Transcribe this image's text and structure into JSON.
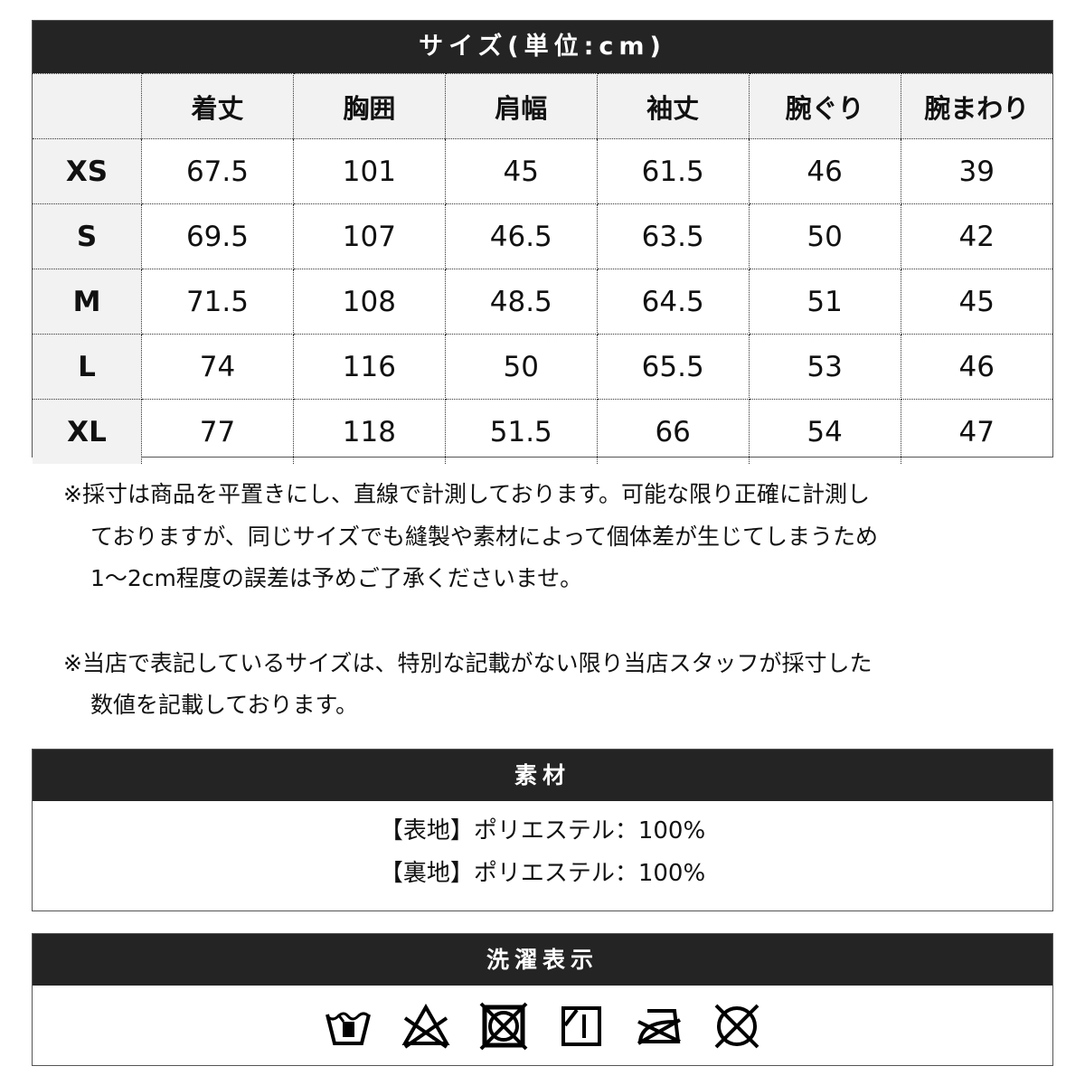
{
  "size_table": {
    "title": "サイズ(単位:cm)",
    "columns": [
      "",
      "着丈",
      "胸囲",
      "肩幅",
      "袖丈",
      "腕ぐり",
      "腕まわり"
    ],
    "rows": [
      {
        "size": "XS",
        "values": [
          "67.5",
          "101",
          "45",
          "61.5",
          "46",
          "39"
        ]
      },
      {
        "size": "S",
        "values": [
          "69.5",
          "107",
          "46.5",
          "63.5",
          "50",
          "42"
        ]
      },
      {
        "size": "M",
        "values": [
          "71.5",
          "108",
          "48.5",
          "64.5",
          "51",
          "45"
        ]
      },
      {
        "size": "L",
        "values": [
          "74",
          "116",
          "50",
          "65.5",
          "53",
          "46"
        ]
      },
      {
        "size": "XL",
        "values": [
          "77",
          "118",
          "51.5",
          "66",
          "54",
          "47"
        ]
      }
    ]
  },
  "notes": {
    "note1": [
      "※採寸は商品を平置きにし、直線で計測しております。可能な限り正確に計測し",
      "ておりますが、同じサイズでも縫製や素材によって個体差が生じてしまうため",
      "1～2cm程度の誤差は予めご了承くださいませ。"
    ],
    "note2": [
      "※当店で表記しているサイズは、特別な記載がない限り当店スタッフが採寸した",
      "数値を記載しております。"
    ]
  },
  "material": {
    "title": "素材",
    "lines": [
      "【表地】ポリエステル：100%",
      "【裏地】ポリエステル：100%"
    ]
  },
  "care": {
    "title": "洗濯表示",
    "icons": [
      "hand-wash-icon",
      "no-bleach-icon",
      "no-tumble-dry-icon",
      "line-dry-icon",
      "no-iron-icon",
      "no-dry-clean-icon"
    ]
  },
  "colors": {
    "header_bar": "#242424",
    "header_cell": "#f2f2f2"
  }
}
